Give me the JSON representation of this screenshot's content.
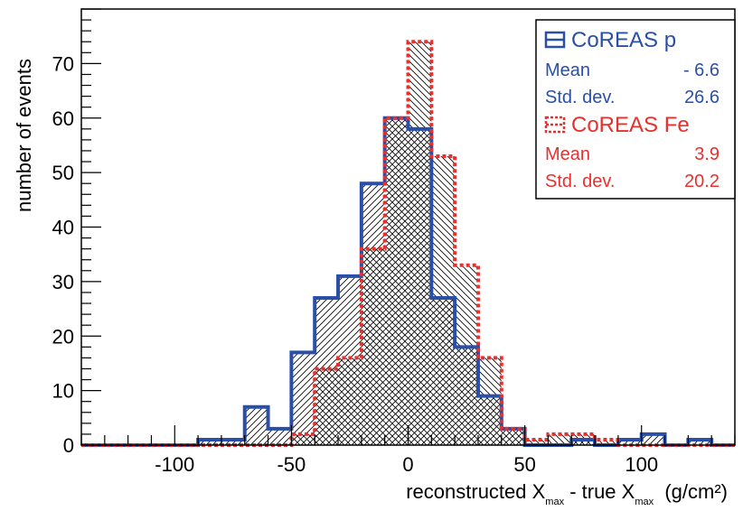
{
  "chart_data": {
    "type": "histogram",
    "xlabel_parts": {
      "a": "reconstructed X",
      "sub1": "max",
      "b": " - true X",
      "sub2": "max",
      "c": "  (g/cm²)"
    },
    "ylabel": "number of events",
    "xlim": [
      -140,
      140
    ],
    "ylim": [
      0,
      80
    ],
    "x_ticks": [
      -100,
      -50,
      0,
      50,
      100
    ],
    "y_ticks": [
      0,
      10,
      20,
      30,
      40,
      50,
      60,
      70
    ],
    "bin_width": 10,
    "series": [
      {
        "name": "CoREAS p",
        "color": "#2a4fa8",
        "style": "solid",
        "bins": [
          {
            "x0": -140,
            "v": 0
          },
          {
            "x0": -130,
            "v": 0
          },
          {
            "x0": -120,
            "v": 0
          },
          {
            "x0": -110,
            "v": 0
          },
          {
            "x0": -100,
            "v": 0
          },
          {
            "x0": -90,
            "v": 1
          },
          {
            "x0": -80,
            "v": 1
          },
          {
            "x0": -70,
            "v": 7
          },
          {
            "x0": -60,
            "v": 3
          },
          {
            "x0": -50,
            "v": 17
          },
          {
            "x0": -40,
            "v": 27
          },
          {
            "x0": -30,
            "v": 31
          },
          {
            "x0": -20,
            "v": 48
          },
          {
            "x0": -10,
            "v": 60
          },
          {
            "x0": 0,
            "v": 58
          },
          {
            "x0": 10,
            "v": 27
          },
          {
            "x0": 20,
            "v": 18
          },
          {
            "x0": 30,
            "v": 9
          },
          {
            "x0": 40,
            "v": 3
          },
          {
            "x0": 50,
            "v": 0
          },
          {
            "x0": 60,
            "v": 0
          },
          {
            "x0": 70,
            "v": 1
          },
          {
            "x0": 80,
            "v": 0
          },
          {
            "x0": 90,
            "v": 1
          },
          {
            "x0": 100,
            "v": 2
          },
          {
            "x0": 110,
            "v": 0
          },
          {
            "x0": 120,
            "v": 1
          },
          {
            "x0": 130,
            "v": 0
          }
        ],
        "stats": {
          "mean_label": "Mean",
          "mean": "- 6.6",
          "std_label": "Std. dev.",
          "std": "26.6"
        }
      },
      {
        "name": "CoREAS Fe",
        "color": "#e8302e",
        "style": "dotted",
        "bins": [
          {
            "x0": -140,
            "v": 0
          },
          {
            "x0": -130,
            "v": 0
          },
          {
            "x0": -120,
            "v": 0
          },
          {
            "x0": -110,
            "v": 0
          },
          {
            "x0": -100,
            "v": 0
          },
          {
            "x0": -90,
            "v": 0
          },
          {
            "x0": -80,
            "v": 0
          },
          {
            "x0": -70,
            "v": 0
          },
          {
            "x0": -60,
            "v": 0
          },
          {
            "x0": -50,
            "v": 2
          },
          {
            "x0": -40,
            "v": 14
          },
          {
            "x0": -30,
            "v": 16
          },
          {
            "x0": -20,
            "v": 36
          },
          {
            "x0": -10,
            "v": 60
          },
          {
            "x0": 0,
            "v": 74
          },
          {
            "x0": 10,
            "v": 53
          },
          {
            "x0": 20,
            "v": 33
          },
          {
            "x0": 30,
            "v": 16
          },
          {
            "x0": 40,
            "v": 3
          },
          {
            "x0": 50,
            "v": 1
          },
          {
            "x0": 60,
            "v": 2
          },
          {
            "x0": 70,
            "v": 2
          },
          {
            "x0": 80,
            "v": 1
          },
          {
            "x0": 90,
            "v": 0
          },
          {
            "x0": 100,
            "v": 0
          },
          {
            "x0": 110,
            "v": 0
          },
          {
            "x0": 120,
            "v": 0
          },
          {
            "x0": 130,
            "v": 0
          }
        ],
        "stats": {
          "mean_label": "Mean",
          "mean": "3.9",
          "std_label": "Std. dev.",
          "std": "20.2"
        }
      }
    ],
    "legend_position": "top-right"
  }
}
